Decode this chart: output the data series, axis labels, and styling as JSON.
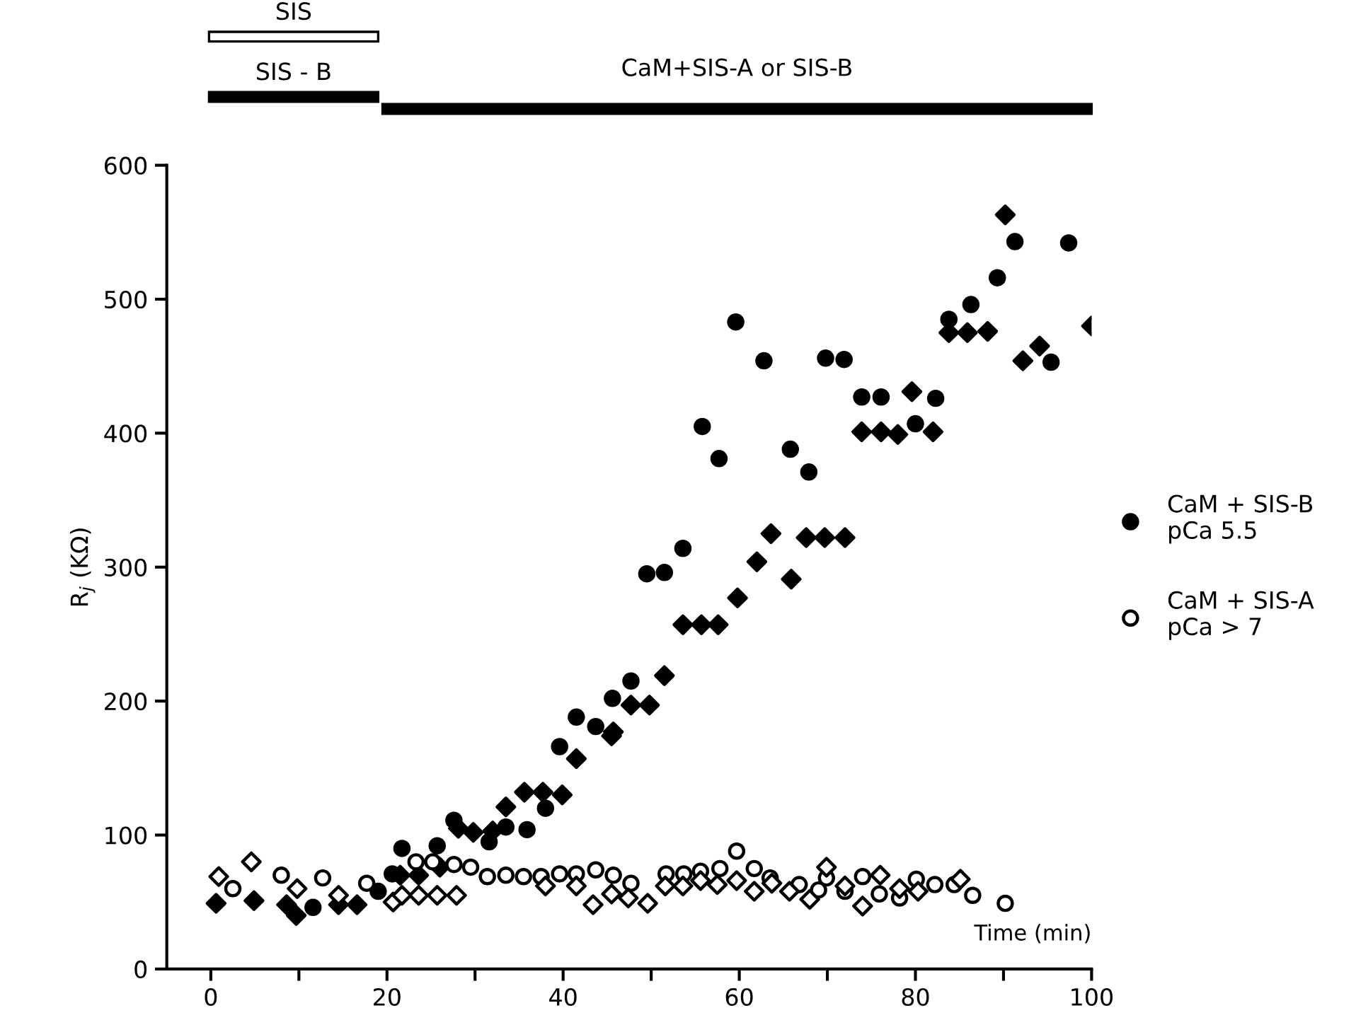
{
  "chart_data": {
    "type": "scatter",
    "xlabel": "Time (min)",
    "ylabel": "R$_{j}$ (KΩ)",
    "xlim": [
      -5,
      100
    ],
    "ylim": [
      0,
      600
    ],
    "xticks": [
      0,
      {
        "value": 10,
        "label": null
      },
      20,
      {
        "value": 30,
        "label": null
      },
      40,
      {
        "value": 50,
        "label": null
      },
      60,
      {
        "value": 70,
        "label": null
      },
      80,
      {
        "value": 90,
        "label": null
      },
      100
    ],
    "yticks": [
      0,
      100,
      200,
      300,
      400,
      500,
      600
    ],
    "grid": false,
    "legend": "right",
    "annotations": [
      "SIS",
      "SIS - B",
      "CaM+SIS-A or SIS-B"
    ],
    "series": [
      {
        "name": "CaM + SIS-B\npCa 5.5",
        "color": "#000000",
        "marker": "circle",
        "x": [
          11.6,
          19,
          20.6,
          21.7,
          25.7,
          27.6,
          31.6,
          33.5,
          35.9,
          38,
          39.6,
          41.5,
          43.7,
          45.6,
          47.7,
          49.5,
          51.5,
          53.6,
          55.8,
          57.7,
          59.6,
          62.8,
          65.8,
          67.9,
          69.8,
          71.9,
          73.9,
          76.1,
          80,
          82.3,
          83.8,
          86.3,
          89.3,
          91.3,
          95.4,
          97.4
        ],
        "values": [
          46,
          58,
          71,
          90,
          92,
          111,
          95,
          106,
          104,
          120,
          166,
          188,
          181,
          202,
          215,
          295,
          296,
          314,
          405,
          381,
          483,
          454,
          388,
          371,
          456,
          455,
          427,
          427,
          407,
          426,
          485,
          496,
          516,
          543,
          453,
          542
        ]
      },
      {
        "color": "#000000",
        "marker": "diamond",
        "x": [
          0.6,
          4.9,
          8.6,
          9.7,
          14.5,
          16.6,
          21.5,
          23.6,
          26,
          28.1,
          29.8,
          32,
          33.5,
          35.6,
          37.7,
          39.9,
          41.5,
          45.5,
          45.7,
          47.7,
          49.8,
          51.5,
          53.6,
          55.7,
          57.6,
          59.8,
          62,
          63.6,
          65.9,
          67.6,
          69.7,
          72,
          73.9,
          76.1,
          78,
          79.6,
          82,
          83.8,
          85.9,
          88.2,
          90.2,
          92.2,
          94.1,
          100
        ],
        "values": [
          49,
          51,
          48,
          40,
          48,
          48,
          70,
          70,
          76,
          105,
          102,
          103,
          121,
          132,
          132,
          130,
          157,
          174,
          177,
          197,
          197,
          219,
          257,
          257,
          257,
          277,
          304,
          325,
          291,
          322,
          322,
          322,
          401,
          401,
          399,
          431,
          401,
          475,
          475,
          476,
          563,
          454,
          465,
          480
        ]
      },
      {
        "name": "CaM + SIS-A\npCa > 7",
        "color": "#ffffff",
        "marker": "circle",
        "x": [
          2.5,
          8,
          12.7,
          17.7,
          23.3,
          25.2,
          27.6,
          29.5,
          31.4,
          33.5,
          35.5,
          37.5,
          39.6,
          41.5,
          43.7,
          45.7,
          47.7,
          51.7,
          53.7,
          55.6,
          57.8,
          59.7,
          61.7,
          63.5,
          66.8,
          69,
          69.9,
          72,
          74,
          75.9,
          78.2,
          80.1,
          82.2,
          84.4,
          86.5,
          90.2
        ],
        "values": [
          60,
          70,
          68,
          64,
          80,
          80,
          78,
          76,
          69,
          70,
          69,
          69,
          71,
          71,
          74,
          70,
          64,
          71,
          71,
          73,
          75,
          88,
          75,
          68,
          63,
          59,
          68,
          58,
          69,
          56,
          53,
          67,
          63,
          63,
          55,
          49
        ]
      },
      {
        "color": "#ffffff",
        "marker": "diamond",
        "x": [
          0.9,
          4.6,
          9.8,
          14.5,
          20.7,
          21.7,
          23.6,
          25.7,
          27.9,
          38,
          41.5,
          43.4,
          45.5,
          47.4,
          49.6,
          51.6,
          53.6,
          55.6,
          57.5,
          59.7,
          61.7,
          63.7,
          65.7,
          68,
          69.9,
          72,
          74,
          76,
          78.2,
          80.3,
          85.1
        ],
        "values": [
          69,
          80,
          60,
          55,
          50,
          55,
          55,
          55,
          55,
          62,
          62,
          48,
          56,
          53,
          49,
          62,
          62,
          66,
          63,
          66,
          58,
          64,
          58,
          52,
          76,
          62,
          47,
          70,
          60,
          58,
          67
        ]
      }
    ]
  }
}
